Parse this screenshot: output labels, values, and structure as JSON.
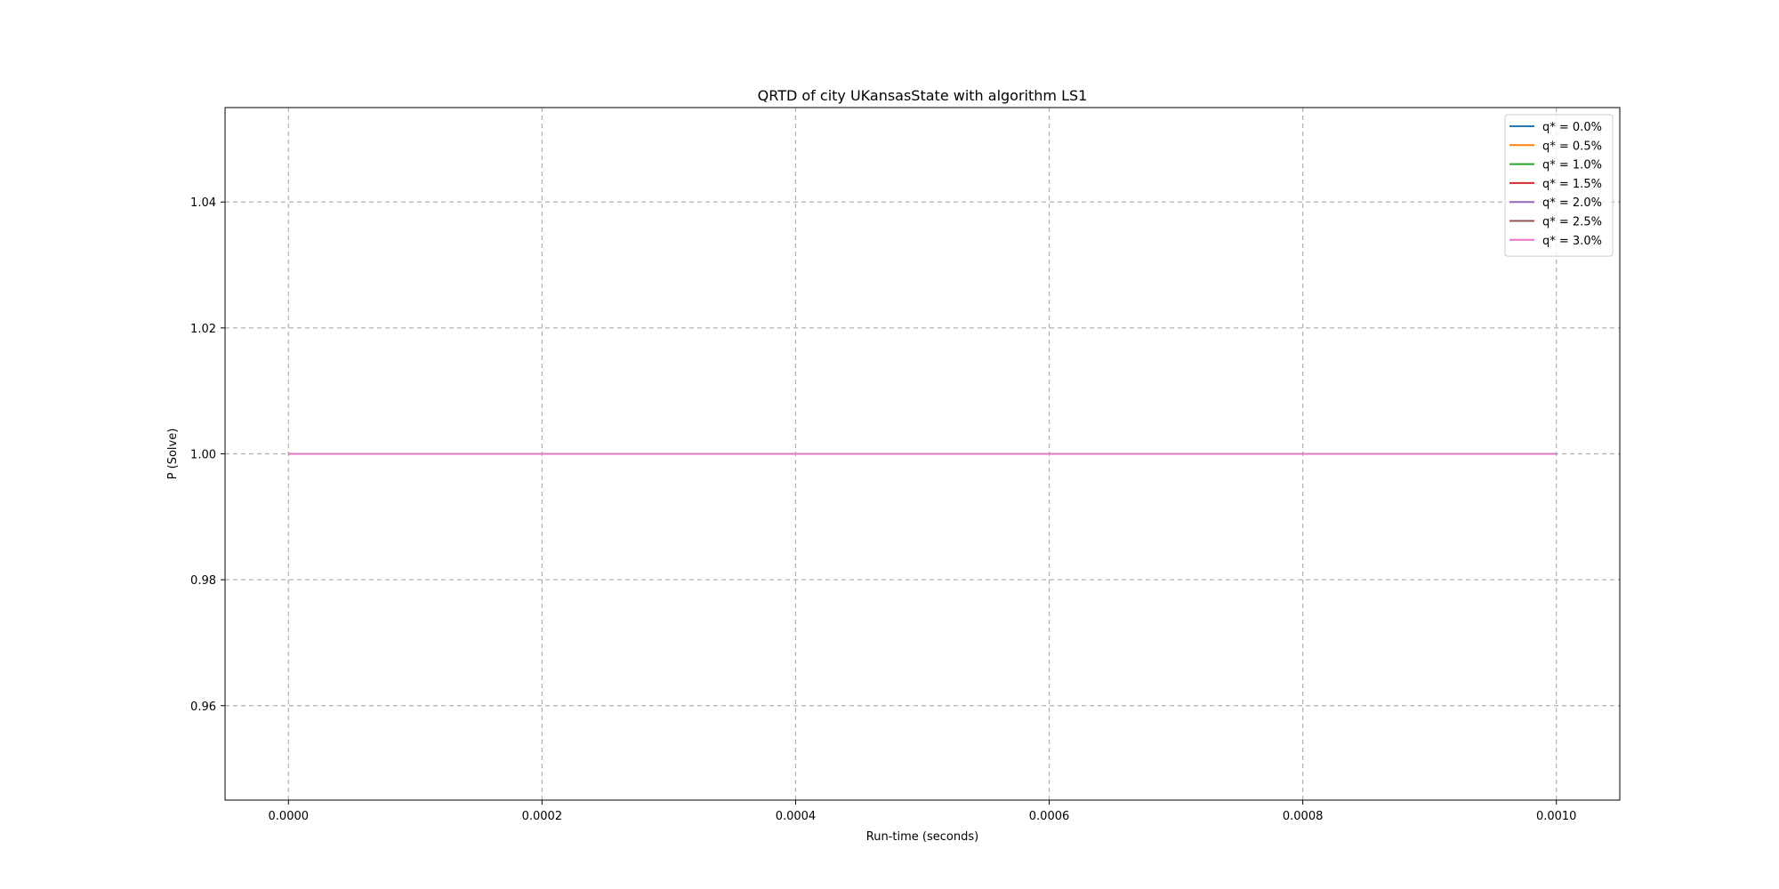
{
  "chart_data": {
    "type": "line",
    "title": "QRTD of city UKansasState with algorithm LS1",
    "xlabel": "Run-time (seconds)",
    "ylabel": "P (Solve)",
    "xlim": [
      -5e-05,
      0.00105
    ],
    "ylim": [
      0.945,
      1.055
    ],
    "xticks": [
      0.0,
      0.0002,
      0.0004,
      0.0006,
      0.0008,
      0.001
    ],
    "xtick_labels": [
      "0.0000",
      "0.0002",
      "0.0004",
      "0.0006",
      "0.0008",
      "0.0010"
    ],
    "yticks": [
      0.96,
      0.98,
      1.0,
      1.02,
      1.04
    ],
    "ytick_labels": [
      "0.96",
      "0.98",
      "1.00",
      "1.02",
      "1.04"
    ],
    "grid": true,
    "legend_position": "top-right",
    "series": [
      {
        "name": "q* = 0.0%",
        "color": "#1f77b4",
        "x": [
          0.0,
          0.001
        ],
        "y": [
          1.0,
          1.0
        ]
      },
      {
        "name": "q* = 0.5%",
        "color": "#ff7f0e",
        "x": [
          0.0,
          0.001
        ],
        "y": [
          1.0,
          1.0
        ]
      },
      {
        "name": "q* = 1.0%",
        "color": "#2ca02c",
        "x": [
          0.0,
          0.001
        ],
        "y": [
          1.0,
          1.0
        ]
      },
      {
        "name": "q* = 1.5%",
        "color": "#d62728",
        "x": [
          0.0,
          0.001
        ],
        "y": [
          1.0,
          1.0
        ]
      },
      {
        "name": "q* = 2.0%",
        "color": "#9467bd",
        "x": [
          0.0,
          0.001
        ],
        "y": [
          1.0,
          1.0
        ]
      },
      {
        "name": "q* = 2.5%",
        "color": "#8c564b",
        "x": [
          0.0,
          0.001
        ],
        "y": [
          1.0,
          1.0
        ]
      },
      {
        "name": "q* = 3.0%",
        "color": "#e377c2",
        "x": [
          0.0,
          0.001
        ],
        "y": [
          1.0,
          1.0
        ]
      }
    ]
  }
}
